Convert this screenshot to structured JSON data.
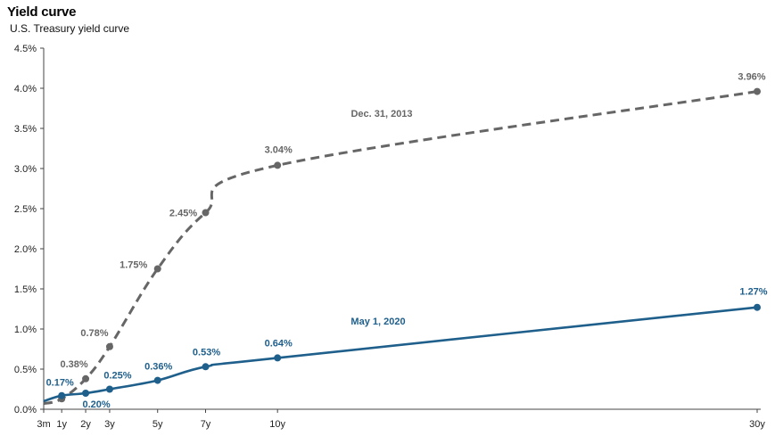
{
  "chart_data": {
    "type": "line",
    "title": "Yield curve",
    "subtitle": "U.S. Treasury yield curve",
    "xlabel": "",
    "ylabel": "",
    "ylim": [
      0,
      4.5
    ],
    "yticks": [
      "0.0%",
      "0.5%",
      "1.0%",
      "1.5%",
      "2.0%",
      "2.5%",
      "3.0%",
      "3.5%",
      "4.0%",
      "4.5%"
    ],
    "x_years": [
      0.25,
      1,
      2,
      3,
      5,
      7,
      10,
      30
    ],
    "x_tick_labels": [
      "3m",
      "1y",
      "2y",
      "3y",
      "5y",
      "7y",
      "10y",
      "30y"
    ],
    "grid": false,
    "series": [
      {
        "name": "Dec. 31, 2013",
        "color": "#666666",
        "style": "dashed",
        "values": [
          0.07,
          0.13,
          0.38,
          0.78,
          1.75,
          2.45,
          3.04,
          3.96
        ],
        "labels": [
          "",
          "",
          "0.38%",
          "0.78%",
          "1.75%",
          "2.45%",
          "3.04%",
          "3.96%"
        ]
      },
      {
        "name": "May 1, 2020",
        "color": "#1f5f8b",
        "style": "solid",
        "values": [
          0.1,
          0.17,
          0.2,
          0.25,
          0.36,
          0.53,
          0.64,
          1.27
        ],
        "labels": [
          "",
          "0.17%",
          "0.20%",
          "0.25%",
          "0.36%",
          "0.53%",
          "0.64%",
          "1.27%"
        ]
      }
    ]
  }
}
